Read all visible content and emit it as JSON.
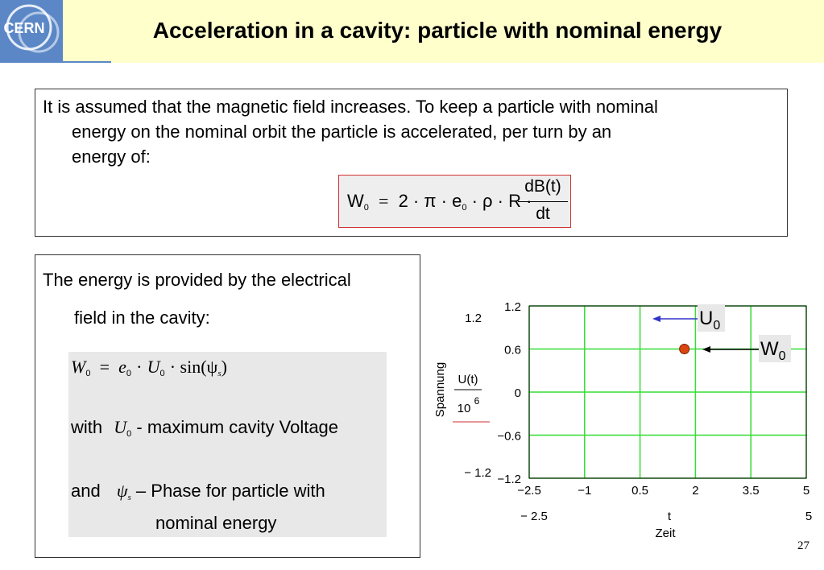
{
  "header": {
    "logo_text": "CERN",
    "title": "Acceleration in a cavity: particle with nominal energy"
  },
  "top_box": {
    "line1": "It is assumed that the magnetic field increases. To keep a particle with nominal",
    "line2": "energy on the nominal orbit the particle is accelerated, per turn by an",
    "line3": "energy of:",
    "formula": {
      "lhs": "W",
      "lhs_sub": "0",
      "eq": "=",
      "body": "2 · π · e",
      "e_sub": "0",
      "body2": "· ρ · R ·",
      "numerator": "dB(t)",
      "denominator": "dt"
    }
  },
  "left_box": {
    "line1": "The energy is provided by the electrical",
    "line2": "field in the cavity:",
    "eq": {
      "W": "W",
      "W_sub": "0",
      "eq": "=",
      "e": "e",
      "e_sub": "0",
      "dot": "·",
      "U": "U",
      "U_sub": "0",
      "sin": "· sin(ψ",
      "sin_sub": "s",
      "close": ")"
    },
    "with_word": "with",
    "with_sym": "U",
    "with_sub": "0",
    "with_text": "- maximum cavity Voltage",
    "and_word": "and",
    "and_sym": "ψ",
    "and_sub": "s",
    "and_text": "– Phase for particle with",
    "and_text2": "nominal energy"
  },
  "chart": {
    "y_tick_labels": [
      "1.2",
      "0.6",
      "0",
      "−0.6",
      "−1.2"
    ],
    "x_tick_labels": [
      "−2.5",
      "−1",
      "0.5",
      "2",
      "3.5",
      "5"
    ],
    "y_max_outside": "1.2",
    "y_min_outside": "− 1.2",
    "x_min_outside": "− 2.5",
    "x_max_outside": "5",
    "x_mid_outside": "t",
    "xlabel": "Zeit",
    "ylabel": "Spannung",
    "y_expr_num": "U(t)",
    "y_expr_den": "10",
    "y_expr_exp": "6",
    "label_U0": "U",
    "label_U0_sub": "0",
    "label_W0": "W",
    "label_W0_sub": "0",
    "grid_color": "#33dd33",
    "point_color": "#dd4411"
  },
  "chart_data": {
    "type": "scatter",
    "xlim": [
      -2.5,
      5
    ],
    "ylim": [
      -1.2,
      1.2
    ],
    "x_ticks": [
      -2.5,
      -1,
      0.5,
      2,
      3.5,
      5
    ],
    "y_ticks": [
      -1.2,
      -0.6,
      0,
      0.6,
      1.2
    ],
    "points": [
      {
        "x": 1.7,
        "y": 0.6
      }
    ],
    "xlabel": "Zeit",
    "ylabel": "Spannung",
    "grid": true
  },
  "page_number": "27"
}
